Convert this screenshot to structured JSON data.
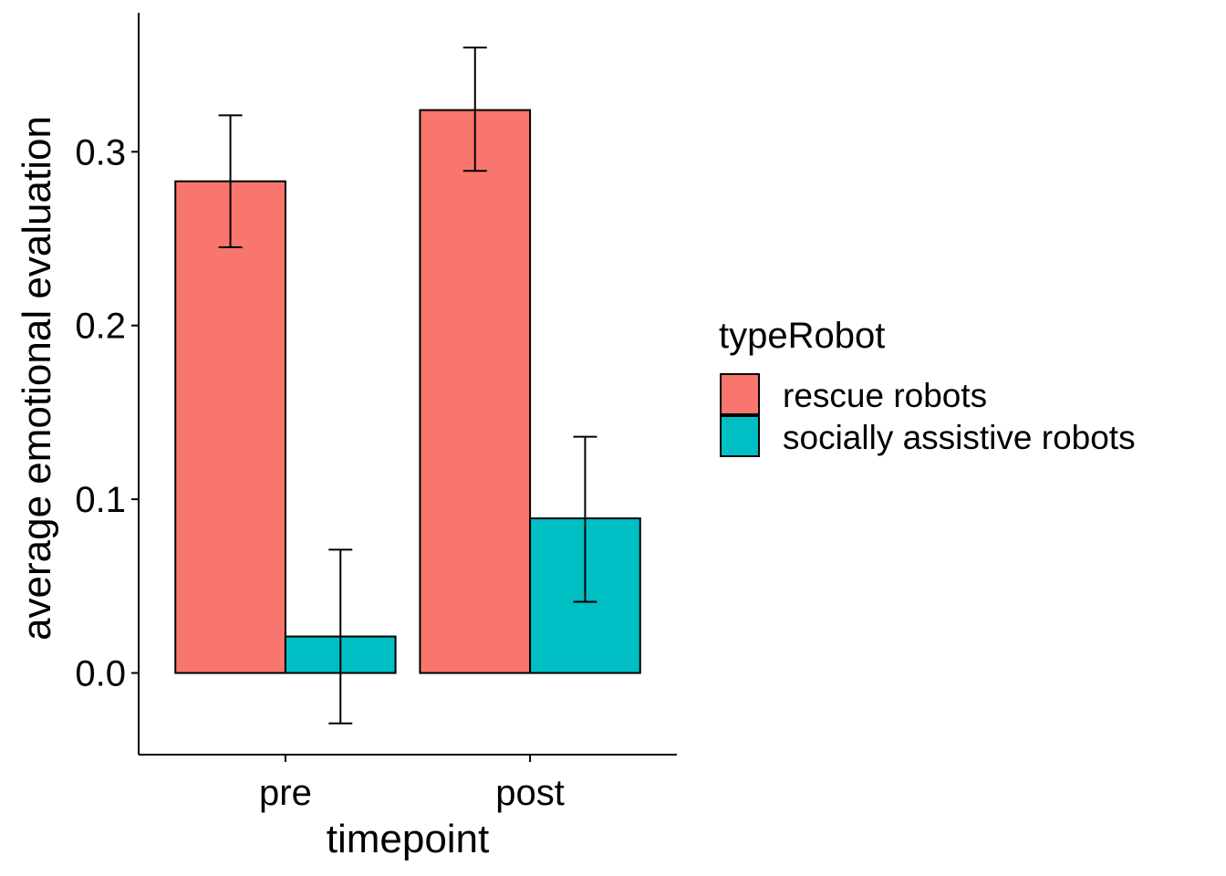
{
  "chart_data": {
    "type": "bar",
    "categories": [
      "pre",
      "post"
    ],
    "series": [
      {
        "name": "rescue robots",
        "color": "#F8766D",
        "values": [
          0.283,
          0.324
        ],
        "error_low": [
          0.245,
          0.289
        ],
        "error_high": [
          0.321,
          0.36
        ]
      },
      {
        "name": "socially assistive robots",
        "color": "#00BFC4",
        "values": [
          0.021,
          0.089
        ],
        "error_low": [
          -0.029,
          0.041
        ],
        "error_high": [
          0.071,
          0.136
        ]
      }
    ],
    "xlabel": "timepoint",
    "ylabel": "average emotional evaluation",
    "ylim": [
      -0.047,
      0.38
    ],
    "yticks": [
      0.0,
      0.1,
      0.2,
      0.3
    ],
    "ytick_labels": [
      "0.0",
      "0.1",
      "0.2",
      "0.3"
    ],
    "grid": false,
    "legend": {
      "title": "typeRobot",
      "position": "right"
    }
  }
}
